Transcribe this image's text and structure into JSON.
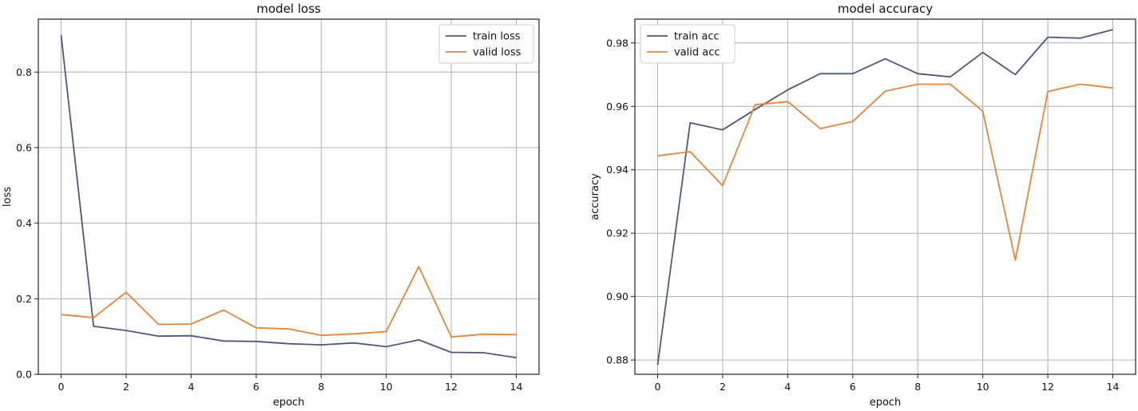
{
  "colors": {
    "train": "#4d5a75",
    "valid": "#e0873f"
  },
  "chart_data": [
    {
      "type": "line",
      "title": "model loss",
      "xlabel": "epoch",
      "ylabel": "loss",
      "xlim": [
        -0.7,
        14.7
      ],
      "ylim": [
        0,
        0.94
      ],
      "xticks": [
        0,
        2,
        4,
        6,
        8,
        10,
        12,
        14
      ],
      "yticks": [
        0.0,
        0.2,
        0.4,
        0.6,
        0.8
      ],
      "ytick_labels": [
        "0.0",
        "0.2",
        "0.4",
        "0.6",
        "0.8"
      ],
      "grid": true,
      "legend_position": "top-right",
      "x": [
        0,
        1,
        2,
        3,
        4,
        5,
        6,
        7,
        8,
        9,
        10,
        11,
        12,
        13,
        14
      ],
      "series": [
        {
          "name": "train loss",
          "color": "#4d5a75",
          "values": [
            0.898,
            0.127,
            0.116,
            0.101,
            0.102,
            0.088,
            0.087,
            0.081,
            0.078,
            0.083,
            0.073,
            0.091,
            0.058,
            0.057,
            0.044
          ]
        },
        {
          "name": "valid loss",
          "color": "#e0873f",
          "values": [
            0.158,
            0.15,
            0.217,
            0.132,
            0.133,
            0.17,
            0.123,
            0.12,
            0.103,
            0.107,
            0.113,
            0.285,
            0.099,
            0.106,
            0.105
          ]
        }
      ]
    },
    {
      "type": "line",
      "title": "model accuracy",
      "xlabel": "epoch",
      "ylabel": "accuracy",
      "xlim": [
        -0.7,
        14.7
      ],
      "ylim": [
        0.8755,
        0.9875
      ],
      "xticks": [
        0,
        2,
        4,
        6,
        8,
        10,
        12,
        14
      ],
      "yticks": [
        0.88,
        0.9,
        0.92,
        0.94,
        0.96,
        0.98
      ],
      "ytick_labels": [
        "0.88",
        "0.90",
        "0.92",
        "0.94",
        "0.96",
        "0.98"
      ],
      "grid": true,
      "legend_position": "top-left",
      "x": [
        0,
        1,
        2,
        3,
        4,
        5,
        6,
        7,
        8,
        9,
        10,
        11,
        12,
        13,
        14
      ],
      "series": [
        {
          "name": "train acc",
          "color": "#4d5a75",
          "values": [
            0.8785,
            0.9548,
            0.9526,
            0.959,
            0.9652,
            0.9703,
            0.9703,
            0.975,
            0.9703,
            0.9693,
            0.977,
            0.97,
            0.9818,
            0.9815,
            0.9842
          ]
        },
        {
          "name": "valid acc",
          "color": "#e0873f",
          "values": [
            0.9444,
            0.9457,
            0.935,
            0.9605,
            0.9615,
            0.953,
            0.9552,
            0.9648,
            0.967,
            0.967,
            0.9585,
            0.9115,
            0.9647,
            0.967,
            0.9658
          ]
        }
      ]
    }
  ]
}
